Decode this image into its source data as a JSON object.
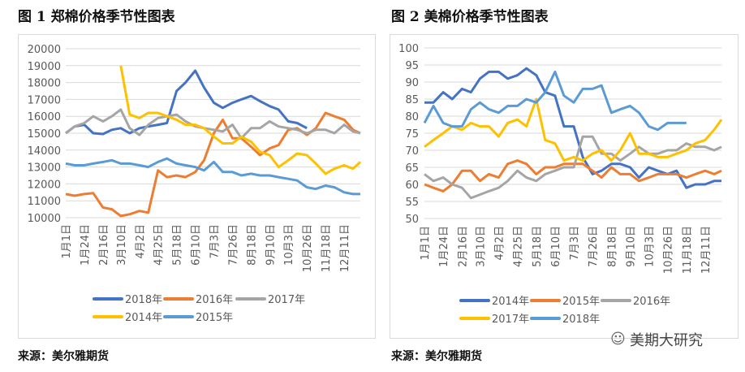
{
  "charts_meta": [
    {
      "title": "图 1  郑棉价格季节性图表",
      "source": "来源：美尔雅期货"
    },
    {
      "title": "图 2  美棉价格季节性图表",
      "source": "来源：美尔雅期货"
    }
  ],
  "watermark": {
    "text": "美期大研究",
    "icon": "wechat-icon"
  },
  "chart_data": [
    {
      "type": "line",
      "title": "图 1  郑棉价格季节性图表",
      "ylim": [
        10000,
        20000
      ],
      "yticks": [
        "10000",
        "11000",
        "12000",
        "13000",
        "14000",
        "15000",
        "16000",
        "17000",
        "18000",
        "19000",
        "20000"
      ],
      "xticks": [
        "1月1日",
        "1月24日",
        "2月16日",
        "3月10日",
        "4月2日",
        "4月25日",
        "5月18日",
        "6月10日",
        "7月3日",
        "7月26日",
        "8月18日",
        "9月10日",
        "10月3日",
        "10月26日",
        "11月18日",
        "12月11日"
      ],
      "grid": true,
      "legend": "bottom",
      "x": [
        "1月1日",
        "1月12日",
        "1月24日",
        "2月4日",
        "2月16日",
        "2月27日",
        "3月10日",
        "3月21日",
        "4月2日",
        "4月13日",
        "4月25日",
        "5月6日",
        "5月18日",
        "5月29日",
        "6月10日",
        "6月21日",
        "7月3日",
        "7月14日",
        "7月26日",
        "8月6日",
        "8月18日",
        "8月29日",
        "9月10日",
        "9月21日",
        "10月3日",
        "10月14日",
        "10月26日",
        "11月6日",
        "11月18日",
        "11月29日",
        "12月11日",
        "12月22日",
        "12月31日"
      ],
      "series": [
        {
          "name": "2018年",
          "color": "#4472C4",
          "values": [
            15000,
            15400,
            15500,
            15000,
            14950,
            15200,
            15300,
            15000,
            15300,
            15400,
            15500,
            15600,
            17500,
            18000,
            18700,
            17700,
            16800,
            16500,
            16800,
            17000,
            17200,
            16900,
            16600,
            16400,
            15700,
            15600,
            15300,
            null,
            null,
            null,
            null,
            null,
            null
          ]
        },
        {
          "name": "2016年",
          "color": "#ED7D31",
          "values": [
            11400,
            11300,
            11400,
            11450,
            10600,
            10500,
            10100,
            10200,
            10400,
            10300,
            12800,
            12400,
            12500,
            12400,
            12700,
            13400,
            15000,
            15800,
            14700,
            14700,
            14200,
            13700,
            14100,
            14300,
            15200,
            15300,
            14900,
            15300,
            16200,
            16000,
            15800,
            15200,
            15000
          ]
        },
        {
          "name": "2017年",
          "color": "#A5A5A5",
          "values": [
            15000,
            15400,
            15600,
            16000,
            15700,
            16000,
            16400,
            15300,
            14900,
            15500,
            15900,
            16000,
            16100,
            15700,
            15400,
            15300,
            15200,
            15100,
            15500,
            14700,
            15300,
            15300,
            15700,
            15400,
            15300,
            15200,
            15000,
            15200,
            15200,
            15000,
            15500,
            15100,
            15000
          ]
        },
        {
          "name": "2014年",
          "color": "#FFC000",
          "values": [
            null,
            null,
            null,
            null,
            null,
            null,
            19000,
            16100,
            15900,
            16200,
            16200,
            16000,
            15800,
            15500,
            15500,
            15300,
            14800,
            14400,
            14400,
            14800,
            14500,
            13900,
            13700,
            13000,
            13400,
            13800,
            13700,
            13200,
            12600,
            12900,
            13100,
            12900,
            13300
          ]
        },
        {
          "name": "2015年",
          "color": "#5B9BD5",
          "values": [
            13200,
            13100,
            13100,
            13200,
            13300,
            13400,
            13200,
            13200,
            13100,
            13000,
            13300,
            13500,
            13200,
            13100,
            13000,
            12800,
            13300,
            12700,
            12700,
            12500,
            12600,
            12500,
            12500,
            12400,
            12300,
            12200,
            11800,
            11700,
            11900,
            11800,
            11500,
            11400,
            11400
          ]
        }
      ]
    },
    {
      "type": "line",
      "title": "图 2  美棉价格季节性图表",
      "ylim": [
        50,
        100
      ],
      "yticks": [
        "50",
        "55",
        "60",
        "65",
        "70",
        "75",
        "80",
        "85",
        "90",
        "95",
        "100"
      ],
      "xticks": [
        "1月1日",
        "1月24日",
        "2月16日",
        "3月10日",
        "4月2日",
        "4月25日",
        "5月18日",
        "6月10日",
        "7月3日",
        "7月26日",
        "8月18日",
        "9月10日",
        "10月3日",
        "10月26日",
        "11月18日",
        "12月11日"
      ],
      "grid": true,
      "legend": "bottom",
      "x": [
        "1月1日",
        "1月12日",
        "1月24日",
        "2月4日",
        "2月16日",
        "2月27日",
        "3月10日",
        "3月21日",
        "4月2日",
        "4月13日",
        "4月25日",
        "5月6日",
        "5月18日",
        "5月29日",
        "6月10日",
        "6月21日",
        "7月3日",
        "7月14日",
        "7月26日",
        "8月6日",
        "8月18日",
        "8月29日",
        "9月10日",
        "9月21日",
        "10月3日",
        "10月14日",
        "10月26日",
        "11月6日",
        "11月18日",
        "11月29日",
        "12月11日",
        "12月22日",
        "12月31日"
      ],
      "series": [
        {
          "name": "2014年",
          "color": "#4472C4",
          "values": [
            84,
            84,
            87,
            85,
            88,
            87,
            91,
            93,
            93,
            91,
            92,
            94,
            92,
            87,
            86,
            77,
            77,
            68,
            63,
            64,
            66,
            66,
            65,
            62,
            65,
            64,
            63,
            64,
            59,
            60,
            60,
            61,
            61
          ]
        },
        {
          "name": "2015年",
          "color": "#ED7D31",
          "values": [
            60,
            59,
            58,
            60,
            64,
            64,
            61,
            63,
            62,
            66,
            67,
            66,
            63,
            65,
            65,
            66,
            66,
            66,
            64,
            62,
            65,
            63,
            63,
            61,
            62,
            63,
            63,
            63,
            62,
            63,
            64,
            63,
            64
          ]
        },
        {
          "name": "2016年",
          "color": "#A5A5A5",
          "values": [
            63,
            61,
            62,
            60,
            59,
            56,
            57,
            58,
            59,
            61,
            64,
            62,
            61,
            63,
            64,
            65,
            65,
            74,
            74,
            69,
            69,
            67,
            69,
            71,
            69,
            69,
            70,
            70,
            72,
            71,
            71,
            70,
            71
          ]
        },
        {
          "name": "2017年",
          "color": "#FFC000",
          "values": [
            71,
            73,
            75,
            77,
            76,
            78,
            77,
            77,
            74,
            78,
            79,
            77,
            85,
            73,
            72,
            67,
            68,
            67,
            69,
            70,
            67,
            70,
            75,
            69,
            69,
            68,
            68,
            69,
            70,
            72,
            73,
            76,
            79
          ]
        },
        {
          "name": "2018年",
          "color": "#5B9BD5",
          "values": [
            78,
            83,
            78,
            77,
            77,
            82,
            84,
            82,
            81,
            83,
            83,
            85,
            84,
            87,
            93,
            86,
            84,
            88,
            88,
            89,
            81,
            82,
            83,
            81,
            77,
            76,
            78,
            78,
            78,
            null,
            null,
            null,
            null
          ]
        }
      ]
    }
  ]
}
